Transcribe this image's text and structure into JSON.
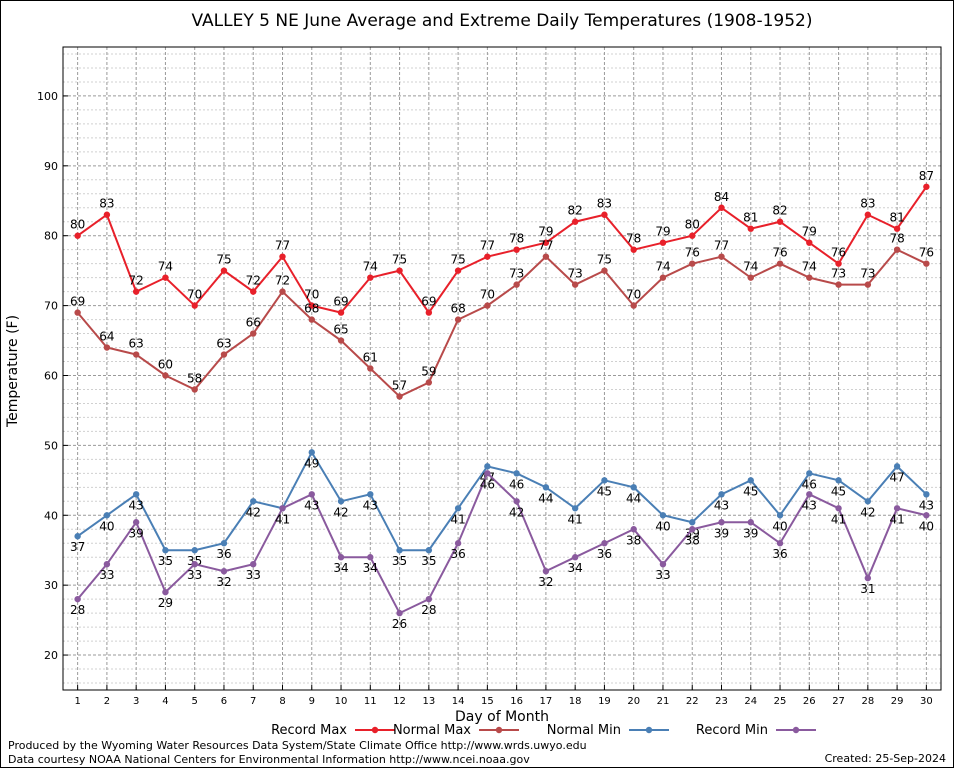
{
  "chart_data": {
    "type": "line",
    "title": "VALLEY 5 NE June Average and Extreme Daily Temperatures (1908-1952)",
    "xlabel": "Day of Month",
    "ylabel": "Temperature (F)",
    "x": [
      1,
      2,
      3,
      4,
      5,
      6,
      7,
      8,
      9,
      10,
      11,
      12,
      13,
      14,
      15,
      16,
      17,
      18,
      19,
      20,
      21,
      22,
      23,
      24,
      25,
      26,
      27,
      28,
      29,
      30
    ],
    "xlim": [
      0.5,
      30.5
    ],
    "ylim": [
      15,
      107
    ],
    "yticks": [
      20,
      30,
      40,
      50,
      60,
      70,
      80,
      90,
      100
    ],
    "grid": true,
    "legend_position": "bottom",
    "series": [
      {
        "name": "Record Max",
        "color": "#e8202a",
        "values": [
          80,
          83,
          72,
          74,
          70,
          75,
          72,
          77,
          70,
          69,
          74,
          75,
          69,
          75,
          77,
          78,
          79,
          82,
          83,
          78,
          79,
          80,
          84,
          81,
          82,
          79,
          76,
          83,
          81,
          87
        ],
        "label_pos": "above"
      },
      {
        "name": "Normal Max",
        "color": "#b84a4a",
        "values": [
          69,
          64,
          63,
          60,
          58,
          63,
          66,
          72,
          68,
          65,
          61,
          57,
          59,
          68,
          70,
          73,
          77,
          73,
          75,
          70,
          74,
          76,
          77,
          74,
          76,
          74,
          73,
          73,
          78,
          76
        ],
        "label_pos": "above"
      },
      {
        "name": "Normal Min",
        "color": "#4a7fb5",
        "values": [
          37,
          40,
          43,
          35,
          35,
          36,
          42,
          41,
          49,
          42,
          43,
          35,
          35,
          41,
          47,
          46,
          44,
          41,
          45,
          44,
          40,
          39,
          43,
          45,
          40,
          46,
          45,
          42,
          47,
          43
        ],
        "label_pos": "below"
      },
      {
        "name": "Record Min",
        "color": "#8a5a9e",
        "values": [
          28,
          33,
          39,
          29,
          33,
          32,
          33,
          41,
          43,
          34,
          34,
          26,
          28,
          36,
          46,
          42,
          32,
          34,
          36,
          38,
          33,
          38,
          39,
          39,
          36,
          43,
          41,
          31,
          41,
          40
        ],
        "label_pos": "below"
      }
    ]
  },
  "footer": {
    "credit_line1": "Produced by the Wyoming Water Resources Data System/State Climate Office http://www.wrds.uwyo.edu",
    "credit_line2": "Data courtesy NOAA National Centers for Environmental Information http://www.ncei.noaa.gov",
    "created": "Created:  25-Sep-2024"
  }
}
